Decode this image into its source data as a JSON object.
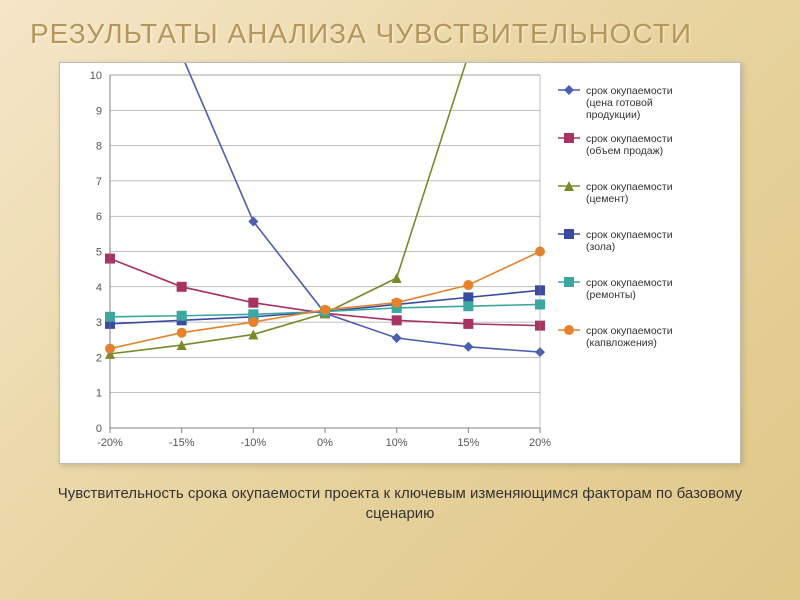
{
  "title": "РЕЗУЛЬТАТЫ АНАЛИЗА ЧУВСТВИТЕЛЬНОСТИ",
  "caption": "Чувствительность срока окупаемости проекта к ключевым изменяющимся факторам по базовому сценарию",
  "chart": {
    "type": "line",
    "background_color": "#ffffff",
    "border_color": "#bbbbbb",
    "grid_color": "#808080",
    "axis_color": "#808080",
    "label_fontsize": 11,
    "legend_fontsize": 10.5,
    "x_categories": [
      "-20%",
      "-15%",
      "-10%",
      "0%",
      "10%",
      "15%",
      "20%"
    ],
    "ylim": [
      0,
      10
    ],
    "ytick_step": 1,
    "marker_size": 5,
    "line_width": 1.6,
    "series": [
      {
        "name": "срок окупаемости (цена готовой продукции)",
        "color": "#4a5fb0",
        "marker": "diamond",
        "values": [
          null,
          null,
          5.85,
          3.25,
          2.55,
          2.3,
          2.15
        ]
      },
      {
        "name": "срок окупаемости (объем продаж)",
        "color": "#a83262",
        "marker": "square",
        "values": [
          4.8,
          4.0,
          3.55,
          3.25,
          3.05,
          2.95,
          2.9
        ]
      },
      {
        "name": "срок окупаемости (цемент)",
        "color": "#7a8a2a",
        "marker": "triangle",
        "values": [
          2.1,
          2.35,
          2.65,
          3.25,
          4.25,
          null,
          null
        ]
      },
      {
        "name": "срок окупаемости (зола)",
        "color": "#3a4aa0",
        "marker": "square",
        "values": [
          2.95,
          3.05,
          3.15,
          3.3,
          3.5,
          3.7,
          3.9
        ]
      },
      {
        "name": "срок окупаемости (ремонты)",
        "color": "#3aa8a0",
        "marker": "square",
        "values": [
          3.15,
          3.18,
          3.22,
          3.3,
          3.4,
          3.45,
          3.5
        ]
      },
      {
        "name": "срок окупаемости (капвложения)",
        "color": "#e8822a",
        "marker": "circle",
        "values": [
          2.25,
          2.7,
          3.0,
          3.35,
          3.55,
          4.05,
          5.0
        ]
      }
    ]
  }
}
